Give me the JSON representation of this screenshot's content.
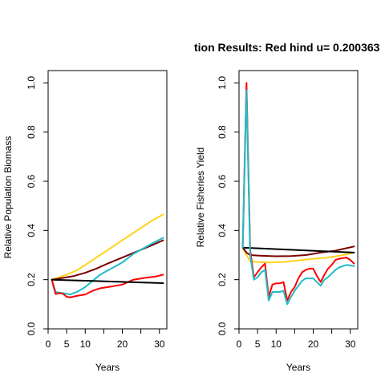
{
  "title": "tion Results: Red hind u= 0.200363",
  "colors": {
    "black": "#000000",
    "red": "#ff0000",
    "cyan": "#1fbcc7",
    "gold": "#ffd21a",
    "maroon": "#7a0000"
  },
  "chart_data": [
    {
      "type": "line",
      "xlabel": "Years",
      "ylabel": "Relative Population Biomass",
      "xlim": [
        0,
        32
      ],
      "ylim": [
        0,
        1.05
      ],
      "x_ticks": [
        0,
        5,
        10,
        20,
        30
      ],
      "y_ticks": [
        0.0,
        0.2,
        0.4,
        0.6,
        0.8,
        1.0
      ],
      "x_tick_labels": [
        "0",
        "5",
        "10",
        "20",
        "30"
      ],
      "y_tick_labels": [
        "0.0",
        "0.2",
        "0.4",
        "0.6",
        "0.8",
        "1.0"
      ],
      "series": [
        {
          "color": "gold",
          "x": [
            1,
            3,
            5,
            8,
            10,
            13,
            16,
            20,
            24,
            28,
            31
          ],
          "y": [
            0.2,
            0.21,
            0.22,
            0.24,
            0.26,
            0.29,
            0.32,
            0.36,
            0.4,
            0.44,
            0.465
          ]
        },
        {
          "color": "maroon",
          "x": [
            1,
            4,
            7,
            10,
            13,
            16,
            20,
            24,
            28,
            31
          ],
          "y": [
            0.2,
            0.207,
            0.215,
            0.228,
            0.245,
            0.265,
            0.29,
            0.315,
            0.34,
            0.36
          ]
        },
        {
          "color": "cyan",
          "x": [
            1,
            2,
            4,
            6,
            8,
            10,
            12,
            14,
            17,
            20,
            23,
            26,
            29,
            31
          ],
          "y": [
            0.2,
            0.15,
            0.145,
            0.14,
            0.152,
            0.17,
            0.195,
            0.22,
            0.245,
            0.27,
            0.305,
            0.33,
            0.355,
            0.37
          ]
        },
        {
          "color": "red",
          "x": [
            1,
            2,
            3,
            4,
            5,
            6,
            8,
            10,
            12,
            14,
            17,
            20,
            23,
            26,
            29,
            31
          ],
          "y": [
            0.2,
            0.142,
            0.145,
            0.143,
            0.13,
            0.128,
            0.135,
            0.14,
            0.155,
            0.165,
            0.172,
            0.18,
            0.2,
            0.207,
            0.213,
            0.22
          ]
        },
        {
          "color": "black",
          "x": [
            1,
            31
          ],
          "y": [
            0.2,
            0.186
          ]
        }
      ]
    },
    {
      "type": "line",
      "xlabel": "Years",
      "ylabel": "Relative Fisheries Yield",
      "xlim": [
        0,
        32
      ],
      "ylim": [
        0,
        1.05
      ],
      "x_ticks": [
        0,
        5,
        10,
        20,
        30
      ],
      "y_ticks": [
        0.0,
        0.2,
        0.4,
        0.6,
        0.8,
        1.0
      ],
      "x_tick_labels": [
        "0",
        "5",
        "10",
        "20",
        "30"
      ],
      "y_tick_labels": [
        "0.0",
        "0.2",
        "0.4",
        "0.6",
        "0.8",
        "1.0"
      ],
      "series": [
        {
          "color": "gold",
          "x": [
            1,
            2,
            3,
            5,
            8,
            12,
            16,
            20,
            24,
            28,
            31
          ],
          "y": [
            0.33,
            0.3,
            0.275,
            0.272,
            0.27,
            0.272,
            0.278,
            0.285,
            0.29,
            0.3,
            0.31
          ]
        },
        {
          "color": "maroon",
          "x": [
            1,
            2,
            3,
            6,
            10,
            14,
            18,
            22,
            26,
            29,
            31
          ],
          "y": [
            0.33,
            0.31,
            0.3,
            0.297,
            0.295,
            0.296,
            0.3,
            0.31,
            0.318,
            0.328,
            0.335
          ]
        },
        {
          "color": "black",
          "x": [
            1,
            31
          ],
          "y": [
            0.33,
            0.31
          ]
        },
        {
          "color": "red",
          "x": [
            1,
            2,
            3,
            4,
            5,
            6,
            7,
            8,
            9,
            10,
            11,
            12,
            13,
            14,
            15,
            16,
            17,
            18,
            19,
            20,
            21,
            22,
            23,
            24,
            25,
            26,
            27,
            28,
            29,
            30,
            31
          ],
          "y": [
            0.33,
            1.0,
            0.32,
            0.21,
            0.23,
            0.25,
            0.265,
            0.13,
            0.18,
            0.185,
            0.185,
            0.19,
            0.115,
            0.15,
            0.17,
            0.205,
            0.23,
            0.24,
            0.245,
            0.245,
            0.215,
            0.19,
            0.22,
            0.245,
            0.26,
            0.28,
            0.285,
            0.288,
            0.29,
            0.28,
            0.265
          ]
        },
        {
          "color": "cyan",
          "x": [
            1,
            2,
            3,
            4,
            5,
            6,
            7,
            8,
            9,
            10,
            11,
            12,
            13,
            14,
            15,
            16,
            17,
            18,
            19,
            20,
            21,
            22,
            23,
            24,
            25,
            26,
            27,
            28,
            29,
            30,
            31
          ],
          "y": [
            0.33,
            0.97,
            0.3,
            0.2,
            0.21,
            0.23,
            0.24,
            0.115,
            0.15,
            0.15,
            0.15,
            0.155,
            0.1,
            0.13,
            0.155,
            0.175,
            0.195,
            0.205,
            0.205,
            0.205,
            0.19,
            0.175,
            0.2,
            0.21,
            0.225,
            0.24,
            0.25,
            0.255,
            0.26,
            0.258,
            0.255
          ]
        }
      ]
    }
  ]
}
